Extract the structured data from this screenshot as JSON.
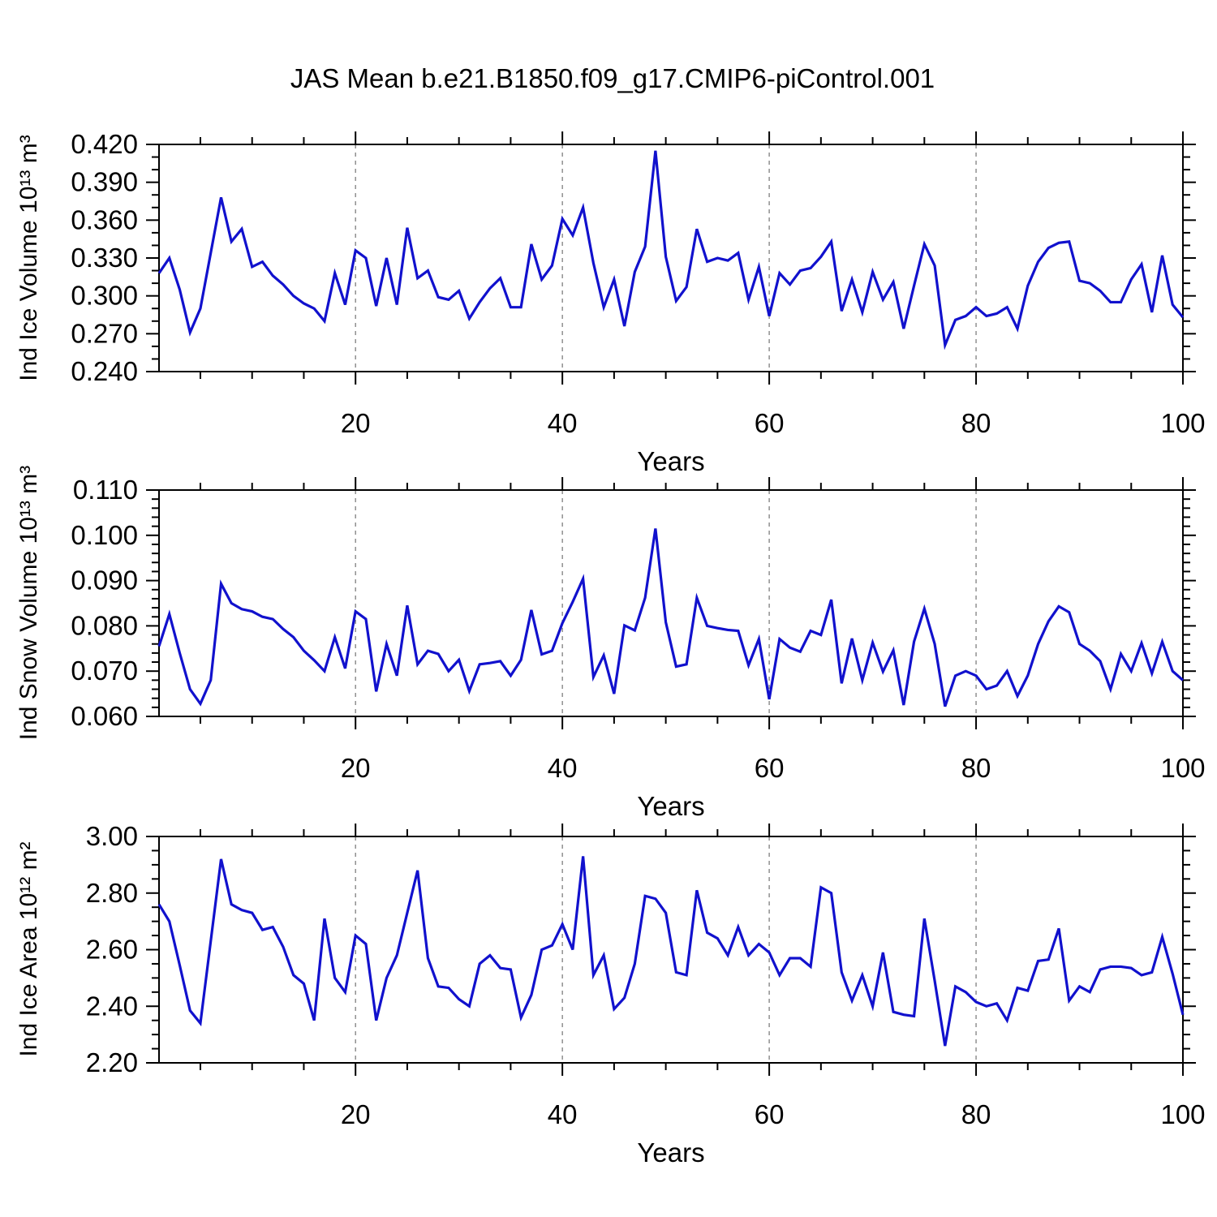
{
  "title": "JAS Mean b.e21.B1850.f09_g17.CMIP6-piControl.001",
  "line_color": "#1111cd",
  "grid_color": "#7f7f7f",
  "axis_color": "#000000",
  "chart_data": [
    {
      "type": "line",
      "ylabel": "Ind Ice Volume 10¹³ m³",
      "xlabel": "Years",
      "x_start": 1,
      "x_end": 100,
      "ylim": [
        0.24,
        0.42
      ],
      "ytick_labels": [
        "0.240",
        "0.270",
        "0.300",
        "0.330",
        "0.360",
        "0.390",
        "0.420"
      ],
      "y_major_step": 0.03,
      "y_minor_step": 0.01,
      "x_major_ticks": [
        20,
        40,
        60,
        80,
        100
      ],
      "x_minor_step": 5,
      "grid_years": [
        20,
        40,
        60,
        80
      ],
      "grid_on": true,
      "legend": "none",
      "values": [
        0.318,
        0.33,
        0.305,
        0.271,
        0.29,
        0.334,
        0.378,
        0.343,
        0.353,
        0.323,
        0.327,
        0.316,
        0.309,
        0.3,
        0.294,
        0.29,
        0.28,
        0.318,
        0.293,
        0.336,
        0.33,
        0.292,
        0.33,
        0.293,
        0.354,
        0.314,
        0.32,
        0.299,
        0.297,
        0.304,
        0.282,
        0.295,
        0.306,
        0.314,
        0.291,
        0.291,
        0.341,
        0.313,
        0.324,
        0.361,
        0.348,
        0.37,
        0.326,
        0.291,
        0.313,
        0.276,
        0.319,
        0.339,
        0.415,
        0.331,
        0.296,
        0.307,
        0.353,
        0.327,
        0.33,
        0.328,
        0.334,
        0.297,
        0.323,
        0.284,
        0.318,
        0.309,
        0.32,
        0.322,
        0.331,
        0.343,
        0.288,
        0.313,
        0.287,
        0.319,
        0.297,
        0.311,
        0.274,
        0.308,
        0.341,
        0.324,
        0.261,
        0.281,
        0.284,
        0.291,
        0.284,
        0.286,
        0.291,
        0.274,
        0.308,
        0.327,
        0.338,
        0.342,
        0.343,
        0.312,
        0.31,
        0.304,
        0.295,
        0.295,
        0.313,
        0.325,
        0.287,
        0.332,
        0.293,
        0.283
      ]
    },
    {
      "type": "line",
      "ylabel": "Ind Snow Volume 10¹³ m³",
      "xlabel": "Years",
      "x_start": 1,
      "x_end": 100,
      "ylim": [
        0.06,
        0.11
      ],
      "ytick_labels": [
        "0.060",
        "0.070",
        "0.080",
        "0.090",
        "0.100",
        "0.110"
      ],
      "y_major_step": 0.01,
      "y_minor_step": 0.002,
      "x_major_ticks": [
        20,
        40,
        60,
        80,
        100
      ],
      "x_minor_step": 5,
      "grid_years": [
        20,
        40,
        60,
        80
      ],
      "grid_on": true,
      "legend": "none",
      "values": [
        0.0755,
        0.0826,
        0.074,
        0.066,
        0.0628,
        0.068,
        0.0893,
        0.085,
        0.0837,
        0.0832,
        0.082,
        0.0815,
        0.0793,
        0.0775,
        0.0745,
        0.0724,
        0.07,
        0.0775,
        0.0706,
        0.0832,
        0.0815,
        0.0655,
        0.076,
        0.069,
        0.0845,
        0.0715,
        0.0745,
        0.0738,
        0.07,
        0.0725,
        0.0656,
        0.0715,
        0.0718,
        0.0722,
        0.069,
        0.0725,
        0.0835,
        0.0737,
        0.0745,
        0.0806,
        0.0853,
        0.0904,
        0.0687,
        0.0735,
        0.065,
        0.0801,
        0.079,
        0.0862,
        0.1015,
        0.0808,
        0.071,
        0.0715,
        0.0862,
        0.08,
        0.0795,
        0.0791,
        0.0789,
        0.0713,
        0.0771,
        0.0638,
        0.0771,
        0.0752,
        0.0743,
        0.0789,
        0.078,
        0.0858,
        0.0673,
        0.0772,
        0.068,
        0.0763,
        0.0699,
        0.0746,
        0.0625,
        0.0765,
        0.0838,
        0.076,
        0.0622,
        0.069,
        0.07,
        0.069,
        0.066,
        0.0668,
        0.07,
        0.0645,
        0.069,
        0.076,
        0.081,
        0.0843,
        0.083,
        0.076,
        0.0745,
        0.0722,
        0.066,
        0.0738,
        0.07,
        0.0762,
        0.0695,
        0.0765,
        0.07,
        0.068
      ]
    },
    {
      "type": "line",
      "ylabel": "Ind Ice Area 10¹² m²",
      "xlabel": "Years",
      "x_start": 1,
      "x_end": 100,
      "ylim": [
        2.2,
        3.0
      ],
      "ytick_labels": [
        "2.20",
        "2.40",
        "2.60",
        "2.80",
        "3.00"
      ],
      "y_major_step": 0.2,
      "y_minor_step": 0.05,
      "x_major_ticks": [
        20,
        40,
        60,
        80,
        100
      ],
      "x_minor_step": 5,
      "grid_years": [
        20,
        40,
        60,
        80
      ],
      "grid_on": true,
      "legend": "none",
      "values": [
        2.76,
        2.7,
        2.545,
        2.385,
        2.34,
        2.63,
        2.92,
        2.76,
        2.74,
        2.73,
        2.67,
        2.68,
        2.61,
        2.51,
        2.48,
        2.35,
        2.71,
        2.5,
        2.45,
        2.65,
        2.62,
        2.35,
        2.5,
        2.58,
        2.73,
        2.88,
        2.57,
        2.47,
        2.465,
        2.425,
        2.4,
        2.55,
        2.58,
        2.535,
        2.53,
        2.36,
        2.44,
        2.6,
        2.615,
        2.69,
        2.6,
        2.93,
        2.51,
        2.58,
        2.39,
        2.43,
        2.55,
        2.79,
        2.78,
        2.73,
        2.52,
        2.51,
        2.81,
        2.66,
        2.64,
        2.58,
        2.68,
        2.58,
        2.62,
        2.59,
        2.51,
        2.57,
        2.57,
        2.54,
        2.82,
        2.8,
        2.52,
        2.42,
        2.51,
        2.4,
        2.59,
        2.38,
        2.37,
        2.365,
        2.71,
        2.49,
        2.26,
        2.47,
        2.45,
        2.415,
        2.4,
        2.41,
        2.35,
        2.465,
        2.455,
        2.56,
        2.565,
        2.675,
        2.42,
        2.47,
        2.45,
        2.53,
        2.54,
        2.54,
        2.535,
        2.51,
        2.52,
        2.645,
        2.515,
        2.37
      ]
    }
  ]
}
